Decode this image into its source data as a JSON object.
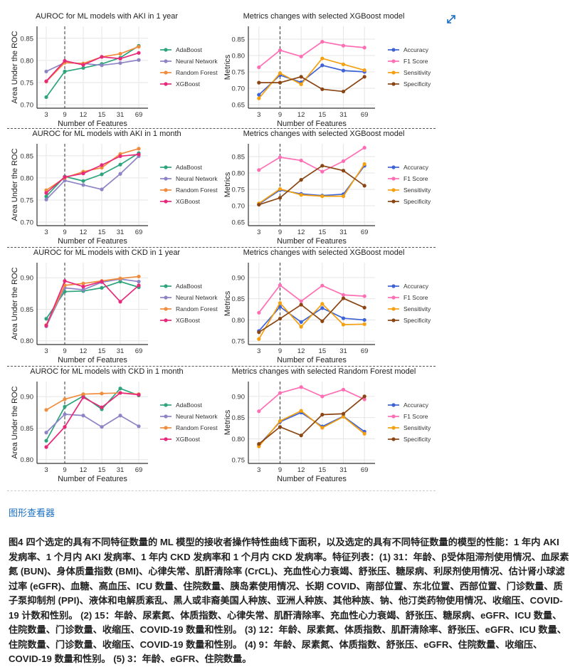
{
  "figure": {
    "viewer_link": "图形查看器",
    "caption_label": "图4",
    "caption_text": "四个选定的具有不同特征数量的 ML 模型的接收者操作特性曲线下面积，以及选定的具有不同特征数量的模型的性能：1 年内 AKI 发病率、1 个月内 AKI 发病率、1 年内 CKD 发病率和 1 个月内 CKD 发病率。特征列表：(1) 31：年龄、β受体阻滞剂使用情况、血尿素氮 (BUN)、身体质量指数 (BMI)、心律失常、肌酐清除率 (CrCL)、充血性心力衰竭、舒张压、糖尿病、利尿剂使用情况、估计肾小球滤过率 (eGFR)、血糖、高血压、ICU 数量、住院数量、胰岛素使用情况、长期 COVID、南部位置、东北位置、西部位置、门诊数量、质子泵抑制剂 (PPI)、液体和电解质紊乱、黑人或非裔美国人种族、亚洲人种族、其他种族、钠、他汀类药物使用情况、收缩压、COVID-19 计数和性别。 (2) 15：年龄、尿素氮、体质指数、心律失常、肌酐清除率、充血性心力衰竭、舒张压、糖尿病、eGFR、ICU 数量、住院数量、门诊数量、收缩压、COVID-19 数量和性别。 (3) 12：年龄、尿素氮、体质指数、肌酐清除率、舒张压、eGFR、ICU 数量、住院数量、门诊数量、收缩压、COVID-19 数量和性别。 (4) 9：年龄、尿素氮、体质指数、舒张压、eGFR、住院数量、收缩压、COVID-19 数量和性别。 (5) 3：年龄、eGFR、住院数量。",
    "expand_icon": "expand-arrows-icon",
    "link_color": "#1a6fc0"
  },
  "chart_data": [
    {
      "type": "line",
      "title": "AUROC for ML models with AKI in 1 year",
      "xlabel": "Number of Features",
      "ylabel": "Area Under the ROC",
      "categories": [
        "3",
        "9",
        "12",
        "15",
        "31",
        "69"
      ],
      "ylim": [
        0.692,
        0.877
      ],
      "yticks": [
        "0.70",
        "0.75",
        "0.80",
        "0.85"
      ],
      "reference_line_x": "9",
      "grid": true,
      "legend": "right",
      "series": [
        {
          "name": "AdaBoost",
          "color": "#2ca57c",
          "values": [
            0.717,
            0.775,
            0.783,
            0.792,
            0.806,
            0.833
          ]
        },
        {
          "name": "Neural Network",
          "color": "#8d84c6",
          "values": [
            0.775,
            0.795,
            0.793,
            0.789,
            0.794,
            0.801
          ]
        },
        {
          "name": "Random Forest",
          "color": "#f08c3c",
          "values": [
            0.752,
            0.795,
            0.793,
            0.808,
            0.815,
            0.831
          ]
        },
        {
          "name": "XGBoost",
          "color": "#e8287a",
          "values": [
            0.753,
            0.799,
            0.79,
            0.808,
            0.804,
            0.817
          ]
        }
      ]
    },
    {
      "type": "line",
      "title": "Metrics changes with selected XGBoost model",
      "xlabel": "Number of Features",
      "ylabel": "Metrics",
      "categories": [
        "3",
        "9",
        "12",
        "15",
        "31",
        "69"
      ],
      "ylim": [
        0.639,
        0.889
      ],
      "yticks": [
        "0.65",
        "0.70",
        "0.75",
        "0.80",
        "0.85"
      ],
      "reference_line_x": "9",
      "grid": true,
      "legend": "right",
      "series": [
        {
          "name": "Accuracy",
          "color": "#3d63d6",
          "values": [
            0.68,
            0.74,
            0.718,
            0.77,
            0.754,
            0.75
          ]
        },
        {
          "name": "F1 Score",
          "color": "#ff6eb4",
          "values": [
            0.764,
            0.816,
            0.797,
            0.842,
            0.83,
            0.824
          ]
        },
        {
          "name": "Sensitivity",
          "color": "#f5a00f",
          "values": [
            0.669,
            0.746,
            0.712,
            0.791,
            0.773,
            0.755
          ]
        },
        {
          "name": "Specificity",
          "color": "#8b4513",
          "values": [
            0.717,
            0.717,
            0.735,
            0.697,
            0.69,
            0.735
          ]
        }
      ]
    },
    {
      "type": "line",
      "title": "AUROC for ML models with AKI in 1 month",
      "xlabel": "Number of Features",
      "ylabel": "Area Under the ROC",
      "categories": [
        "3",
        "9",
        "12",
        "15",
        "31",
        "69"
      ],
      "ylim": [
        0.692,
        0.877
      ],
      "yticks": [
        "0.70",
        "0.75",
        "0.80",
        "0.85"
      ],
      "reference_line_x": "9",
      "grid": true,
      "legend": "right",
      "series": [
        {
          "name": "AdaBoost",
          "color": "#2ca57c",
          "values": [
            0.758,
            0.803,
            0.793,
            0.808,
            0.83,
            0.856
          ]
        },
        {
          "name": "Neural Network",
          "color": "#8d84c6",
          "values": [
            0.751,
            0.794,
            0.784,
            0.774,
            0.809,
            0.849
          ]
        },
        {
          "name": "Random Forest",
          "color": "#f08c3c",
          "values": [
            0.772,
            0.8,
            0.814,
            0.823,
            0.854,
            0.866
          ]
        },
        {
          "name": "XGBoost",
          "color": "#e8287a",
          "values": [
            0.766,
            0.802,
            0.81,
            0.829,
            0.849,
            0.853
          ]
        }
      ]
    },
    {
      "type": "line",
      "title": "Metrics changes with selected XGBoost model",
      "xlabel": "Number of Features",
      "ylabel": "Metrics",
      "categories": [
        "3",
        "9",
        "12",
        "15",
        "31",
        "69"
      ],
      "ylim": [
        0.639,
        0.889
      ],
      "yticks": [
        "0.65",
        "0.70",
        "0.75",
        "0.80",
        "0.85"
      ],
      "reference_line_x": "9",
      "grid": true,
      "legend": "right",
      "series": [
        {
          "name": "Accuracy",
          "color": "#3d63d6",
          "values": [
            0.705,
            0.748,
            0.736,
            0.731,
            0.735,
            0.822
          ]
        },
        {
          "name": "F1 Score",
          "color": "#ff6eb4",
          "values": [
            0.809,
            0.848,
            0.838,
            0.804,
            0.836,
            0.877
          ]
        },
        {
          "name": "Sensitivity",
          "color": "#f5a00f",
          "values": [
            0.707,
            0.751,
            0.733,
            0.729,
            0.729,
            0.827
          ]
        },
        {
          "name": "Specificity",
          "color": "#8b4513",
          "values": [
            0.703,
            0.724,
            0.779,
            0.822,
            0.807,
            0.761
          ]
        }
      ]
    },
    {
      "type": "line",
      "title": "AUROC for ML models with CKD in 1 year",
      "xlabel": "Number of Features",
      "ylabel": "Area Under the ROC",
      "categories": [
        "3",
        "9",
        "12",
        "15",
        "31",
        "69"
      ],
      "ylim": [
        0.794,
        0.924
      ],
      "yticks": [
        "0.80",
        "0.85",
        "0.90"
      ],
      "reference_line_x": "9",
      "grid": true,
      "legend": "right",
      "series": [
        {
          "name": "AdaBoost",
          "color": "#2ca57c",
          "values": [
            0.835,
            0.878,
            0.879,
            0.884,
            0.894,
            0.885
          ]
        },
        {
          "name": "Neural Network",
          "color": "#8d84c6",
          "values": [
            0.823,
            0.884,
            0.881,
            0.893,
            0.898,
            0.894
          ]
        },
        {
          "name": "Random Forest",
          "color": "#f08c3c",
          "values": [
            0.825,
            0.888,
            0.891,
            0.895,
            0.899,
            0.902
          ]
        },
        {
          "name": "XGBoost",
          "color": "#e8287a",
          "values": [
            0.824,
            0.895,
            0.886,
            0.894,
            0.862,
            0.888
          ]
        }
      ]
    },
    {
      "type": "line",
      "title": "Metrics changes with selected XGBoost model",
      "xlabel": "Number of Features",
      "ylabel": "Metrics",
      "categories": [
        "3",
        "9",
        "12",
        "15",
        "31",
        "69"
      ],
      "ylim": [
        0.742,
        0.935
      ],
      "yticks": [
        "0.75",
        "0.80",
        "0.85",
        "0.90"
      ],
      "reference_line_x": "9",
      "grid": true,
      "legend": "right",
      "series": [
        {
          "name": "Accuracy",
          "color": "#3d63d6",
          "values": [
            0.774,
            0.831,
            0.795,
            0.828,
            0.804,
            0.8
          ]
        },
        {
          "name": "F1 Score",
          "color": "#ff6eb4",
          "values": [
            0.817,
            0.882,
            0.844,
            0.881,
            0.859,
            0.856
          ]
        },
        {
          "name": "Sensitivity",
          "color": "#f5a00f",
          "values": [
            0.755,
            0.84,
            0.784,
            0.838,
            0.789,
            0.79
          ]
        },
        {
          "name": "Specificity",
          "color": "#8b4513",
          "values": [
            0.771,
            0.803,
            0.836,
            0.797,
            0.851,
            0.829
          ]
        }
      ]
    },
    {
      "type": "line",
      "title": "AUROC for ML models with CKD in 1 month",
      "xlabel": "Number of Features",
      "ylabel": "Area Under the ROC",
      "categories": [
        "3",
        "9",
        "12",
        "15",
        "31",
        "69"
      ],
      "ylim": [
        0.794,
        0.924
      ],
      "yticks": [
        "0.80",
        "0.85",
        "0.90"
      ],
      "reference_line_x": "9",
      "grid": true,
      "legend": "right",
      "series": [
        {
          "name": "AdaBoost",
          "color": "#2ca57c",
          "values": [
            0.83,
            0.884,
            0.901,
            0.88,
            0.913,
            0.902
          ]
        },
        {
          "name": "Neural Network",
          "color": "#8d84c6",
          "values": [
            0.843,
            0.872,
            0.87,
            0.852,
            0.87,
            0.853
          ]
        },
        {
          "name": "Random Forest",
          "color": "#f08c3c",
          "values": [
            0.879,
            0.896,
            0.904,
            0.905,
            0.906,
            0.904
          ]
        },
        {
          "name": "XGBoost",
          "color": "#e8287a",
          "values": [
            0.82,
            0.852,
            0.899,
            0.883,
            0.906,
            0.903
          ]
        }
      ]
    },
    {
      "type": "line",
      "title": "Metrics changes with selected Random Forest model",
      "xlabel": "Number of Features",
      "ylabel": "Metrics",
      "categories": [
        "3",
        "9",
        "12",
        "15",
        "31",
        "69"
      ],
      "ylim": [
        0.742,
        0.935
      ],
      "yticks": [
        "0.75",
        "0.80",
        "0.85",
        "0.90"
      ],
      "reference_line_x": "9",
      "grid": true,
      "legend": "right",
      "series": [
        {
          "name": "Accuracy",
          "color": "#3d63d6",
          "values": [
            0.785,
            0.84,
            0.862,
            0.829,
            0.853,
            0.817
          ]
        },
        {
          "name": "F1 Score",
          "color": "#ff6eb4",
          "values": [
            0.865,
            0.908,
            0.922,
            0.9,
            0.916,
            0.893
          ]
        },
        {
          "name": "Sensitivity",
          "color": "#f5a00f",
          "values": [
            0.782,
            0.842,
            0.866,
            0.826,
            0.852,
            0.812
          ]
        },
        {
          "name": "Specificity",
          "color": "#8b4513",
          "values": [
            0.788,
            0.828,
            0.808,
            0.857,
            0.859,
            0.9
          ]
        }
      ]
    }
  ]
}
